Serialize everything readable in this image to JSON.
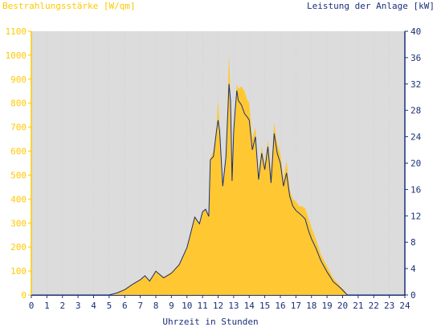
{
  "chart_data": {
    "type": "area",
    "title_left": "Bestrahlungsstärke [W/qm]",
    "title_right": "Leistung der Anlage [kW]",
    "xlabel": "Uhrzeit in Stunden",
    "x_ticks": [
      "0",
      "1",
      "2",
      "3",
      "4",
      "5",
      "6",
      "7",
      "8",
      "9",
      "10",
      "11",
      "12",
      "13",
      "14",
      "15",
      "16",
      "17",
      "18",
      "19",
      "20",
      "21",
      "22",
      "23",
      "24"
    ],
    "left_axis": {
      "min": 0,
      "max": 1100,
      "step": 100,
      "ticks": [
        "0",
        "100",
        "200",
        "300",
        "400",
        "500",
        "600",
        "700",
        "800",
        "900",
        "1000",
        "1100"
      ]
    },
    "right_axis": {
      "min": 0,
      "max": 40,
      "step": 4,
      "ticks": [
        "0",
        "4",
        "8",
        "12",
        "16",
        "20",
        "24",
        "28",
        "32",
        "36",
        "40"
      ]
    },
    "plot_background": "#dcdcdc",
    "colors": {
      "left_axis": "#ffc800",
      "right_axis": "#1a2f7a",
      "irradiance_fill": "#ffc832",
      "power_line": "#1a2f7a"
    },
    "series": [
      {
        "axis": "left",
        "style": "filled-area",
        "x": [
          0,
          5.0,
          5.5,
          6.0,
          6.5,
          7.0,
          7.3,
          7.6,
          8.0,
          8.5,
          9.0,
          9.5,
          10.0,
          10.2,
          10.5,
          10.8,
          11.0,
          11.2,
          11.4,
          11.5,
          11.7,
          11.9,
          12.0,
          12.1,
          12.3,
          12.5,
          12.7,
          12.8,
          12.9,
          13.0,
          13.1,
          13.2,
          13.3,
          13.5,
          13.7,
          13.9,
          14.0,
          14.2,
          14.4,
          14.6,
          14.8,
          15.0,
          15.2,
          15.4,
          15.6,
          15.8,
          16.0,
          16.2,
          16.4,
          16.6,
          16.8,
          17.0,
          17.2,
          17.4,
          17.6,
          17.8,
          18.0,
          18.3,
          18.6,
          19.0,
          19.4,
          19.8,
          20.1,
          20.3,
          24
        ],
        "values": [
          0,
          0,
          10,
          25,
          45,
          65,
          80,
          60,
          100,
          75,
          95,
          130,
          200,
          250,
          330,
          300,
          350,
          360,
          330,
          570,
          600,
          700,
          820,
          690,
          460,
          580,
          1005,
          820,
          480,
          690,
          780,
          880,
          860,
          870,
          850,
          810,
          800,
          650,
          700,
          500,
          620,
          540,
          650,
          510,
          720,
          630,
          590,
          480,
          560,
          440,
          400,
          390,
          370,
          370,
          360,
          320,
          280,
          230,
          170,
          120,
          70,
          40,
          20,
          0,
          0
        ]
      },
      {
        "axis": "right",
        "style": "line",
        "x": [
          0,
          5.0,
          5.5,
          6.0,
          6.5,
          7.0,
          7.3,
          7.6,
          8.0,
          8.5,
          9.0,
          9.5,
          10.0,
          10.2,
          10.5,
          10.8,
          11.0,
          11.2,
          11.4,
          11.5,
          11.7,
          11.9,
          12.0,
          12.1,
          12.3,
          12.5,
          12.7,
          12.8,
          12.9,
          13.0,
          13.1,
          13.2,
          13.3,
          13.5,
          13.7,
          13.9,
          14.0,
          14.2,
          14.4,
          14.6,
          14.8,
          15.0,
          15.2,
          15.4,
          15.6,
          15.8,
          16.0,
          16.2,
          16.4,
          16.6,
          16.8,
          17.0,
          17.2,
          17.4,
          17.6,
          17.8,
          18.0,
          18.3,
          18.6,
          19.0,
          19.4,
          19.8,
          20.1,
          20.3,
          24
        ],
        "values": [
          0,
          0,
          0.3,
          0.8,
          1.6,
          2.3,
          2.9,
          2.1,
          3.6,
          2.6,
          3.3,
          4.6,
          7.2,
          9.0,
          11.8,
          10.8,
          12.6,
          13.0,
          11.9,
          20.5,
          21.0,
          25.0,
          26.5,
          24.9,
          16.5,
          20.9,
          32.0,
          29.5,
          17.3,
          24.8,
          28.1,
          31.0,
          29.5,
          28.8,
          27.5,
          26.9,
          26.5,
          22.0,
          24.0,
          17.5,
          21.5,
          19.0,
          22.5,
          17.0,
          24.5,
          21.5,
          20.0,
          16.5,
          18.5,
          15.0,
          13.5,
          12.8,
          12.4,
          12.0,
          11.5,
          9.8,
          8.5,
          7.0,
          5.2,
          3.5,
          2.0,
          1.2,
          0.5,
          0,
          0
        ]
      }
    ]
  }
}
